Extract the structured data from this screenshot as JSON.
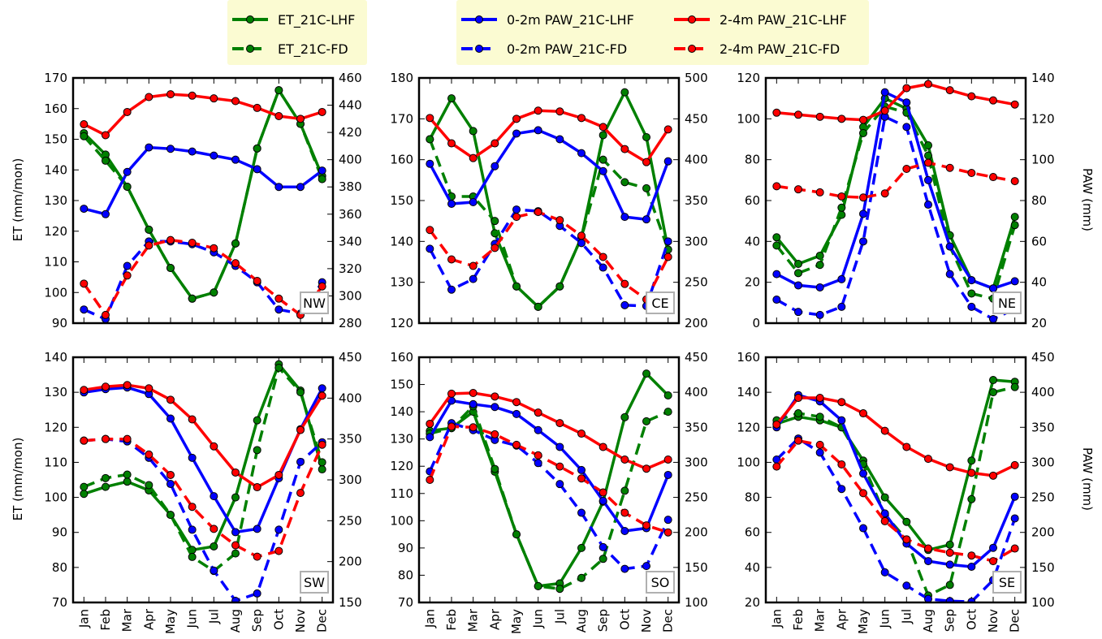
{
  "months": [
    "Jan",
    "Feb",
    "Mar",
    "Apr",
    "May",
    "Jun",
    "Jul",
    "Aug",
    "Sep",
    "Oct",
    "Nov",
    "Dec"
  ],
  "y_left_label": "ET (mm/mon)",
  "y_right_label": "PAW (mm)",
  "colors": {
    "et": "#008000",
    "paw02": "#0000ff",
    "paw24": "#ff0000"
  },
  "legends": [
    {
      "entries": [
        {
          "label": "ET_21C-LHF",
          "series": "et",
          "style": "solid"
        },
        {
          "label": "ET_21C-FD",
          "series": "et",
          "style": "dashed"
        }
      ]
    },
    {
      "entries": [
        {
          "label": "0-2m PAW_21C-LHF",
          "series": "paw02",
          "style": "solid"
        },
        {
          "label": "0-2m PAW_21C-FD",
          "series": "paw02",
          "style": "dashed"
        },
        {
          "label": "2-4m PAW_21C-LHF",
          "series": "paw24",
          "style": "solid"
        },
        {
          "label": "2-4m PAW_21C-FD",
          "series": "paw24",
          "style": "dashed"
        }
      ]
    }
  ],
  "chart_data": [
    {
      "type": "line",
      "region": "NW",
      "x": [
        "Jan",
        "Feb",
        "Mar",
        "Apr",
        "May",
        "Jun",
        "Jul",
        "Aug",
        "Sep",
        "Oct",
        "Nov",
        "Dec"
      ],
      "ylim_left": [
        90,
        170
      ],
      "yticks_left": [
        90,
        100,
        110,
        120,
        130,
        140,
        150,
        160,
        170
      ],
      "ylim_right": [
        280,
        460
      ],
      "yticks_right": [
        280,
        300,
        320,
        340,
        360,
        380,
        400,
        420,
        440,
        460
      ],
      "series": [
        {
          "name": "ET_21C-LHF",
          "axis": "left",
          "color": "et",
          "style": "solid",
          "values": [
            152,
            145,
            134.5,
            120.5,
            108,
            98,
            100,
            116,
            147,
            166,
            155,
            138
          ]
        },
        {
          "name": "ET_21C-FD",
          "axis": "left",
          "color": "et",
          "style": "dashed",
          "values": [
            151,
            143,
            134.5,
            120.5,
            108,
            98,
            100,
            116,
            147,
            166,
            155,
            137
          ]
        },
        {
          "name": "0-2m PAW_21C-LHF",
          "axis": "right",
          "color": "paw02",
          "style": "solid",
          "values": [
            364,
            360,
            391,
            409,
            408,
            406,
            403,
            400,
            393,
            380,
            380,
            392
          ]
        },
        {
          "name": "0-2m PAW_21C-FD",
          "axis": "right",
          "color": "paw02",
          "style": "dashed",
          "values": [
            290,
            283,
            322,
            340,
            340,
            338,
            332,
            322,
            310,
            290,
            287,
            310
          ]
        },
        {
          "name": "2-4m PAW_21C-LHF",
          "axis": "right",
          "color": "paw24",
          "style": "solid",
          "values": [
            426,
            418,
            435,
            446,
            448,
            447,
            445,
            443,
            438,
            432,
            430,
            435
          ]
        },
        {
          "name": "2-4m PAW_21C-FD",
          "axis": "right",
          "color": "paw24",
          "style": "dashed",
          "values": [
            309,
            286,
            315,
            337,
            341,
            339,
            335,
            324,
            311,
            298,
            286,
            307
          ]
        }
      ]
    },
    {
      "type": "line",
      "region": "CE",
      "x": [
        "Jan",
        "Feb",
        "Mar",
        "Apr",
        "May",
        "Jun",
        "Jul",
        "Aug",
        "Sep",
        "Oct",
        "Nov",
        "Dec"
      ],
      "ylim_left": [
        120,
        180
      ],
      "yticks_left": [
        120,
        130,
        140,
        150,
        160,
        170,
        180
      ],
      "ylim_right": [
        200,
        500
      ],
      "yticks_right": [
        200,
        250,
        300,
        350,
        400,
        450,
        500
      ],
      "series": [
        {
          "name": "ET_21C-LHF",
          "axis": "left",
          "color": "et",
          "style": "solid",
          "values": [
            165,
            175,
            167,
            142,
            129,
            124,
            129,
            141,
            166,
            176.5,
            165.5,
            138
          ]
        },
        {
          "name": "ET_21C-FD",
          "axis": "left",
          "color": "et",
          "style": "dashed",
          "values": [
            165,
            151,
            151,
            145,
            129,
            124,
            129,
            141,
            160,
            154.5,
            153,
            138
          ]
        },
        {
          "name": "0-2m PAW_21C-LHF",
          "axis": "right",
          "color": "paw02",
          "style": "solid",
          "values": [
            395,
            346,
            348,
            392,
            432,
            436,
            425,
            408,
            386,
            330,
            327,
            398
          ]
        },
        {
          "name": "0-2m PAW_21C-FD",
          "axis": "right",
          "color": "paw02",
          "style": "dashed",
          "values": [
            291,
            241,
            254,
            297,
            339,
            337,
            319,
            298,
            268,
            222,
            221,
            300
          ]
        },
        {
          "name": "2-4m PAW_21C-LHF",
          "axis": "right",
          "color": "paw24",
          "style": "solid",
          "values": [
            451,
            420,
            402,
            420,
            450,
            460,
            459,
            451,
            440,
            413,
            397,
            437
          ]
        },
        {
          "name": "2-4m PAW_21C-FD",
          "axis": "right",
          "color": "paw24",
          "style": "dashed",
          "values": [
            314,
            278,
            270,
            292,
            330,
            336,
            326,
            307,
            281,
            248,
            229,
            281
          ]
        }
      ]
    },
    {
      "type": "line",
      "region": "NE",
      "x": [
        "Jan",
        "Feb",
        "Mar",
        "Apr",
        "May",
        "Jun",
        "Jul",
        "Aug",
        "Sep",
        "Oct",
        "Nov",
        "Dec"
      ],
      "ylim_left": [
        0,
        120
      ],
      "yticks_left": [
        0,
        20,
        40,
        60,
        80,
        100,
        120
      ],
      "ylim_right": [
        20,
        140
      ],
      "yticks_right": [
        20,
        40,
        60,
        80,
        100,
        120,
        140
      ],
      "series": [
        {
          "name": "ET_21C-LHF",
          "axis": "left",
          "color": "et",
          "style": "solid",
          "values": [
            42,
            29,
            33,
            53,
            96,
            110,
            105,
            87,
            43,
            21,
            17,
            52
          ]
        },
        {
          "name": "ET_21C-FD",
          "axis": "left",
          "color": "et",
          "style": "dashed",
          "values": [
            38,
            24.5,
            28.5,
            56.5,
            93,
            106,
            103,
            82,
            37.5,
            14.5,
            12,
            48
          ]
        },
        {
          "name": "0-2m PAW_21C-LHF",
          "axis": "right",
          "color": "paw02",
          "style": "solid",
          "values": [
            44,
            38.5,
            37.5,
            41.5,
            73.5,
            133,
            128,
            90,
            57.5,
            41,
            37,
            40.5
          ]
        },
        {
          "name": "0-2m PAW_21C-FD",
          "axis": "right",
          "color": "paw02",
          "style": "dashed",
          "values": [
            31.5,
            25.5,
            24,
            28,
            60,
            121,
            116,
            78,
            44,
            28,
            22,
            27
          ]
        },
        {
          "name": "2-4m PAW_21C-LHF",
          "axis": "right",
          "color": "paw24",
          "style": "solid",
          "values": [
            123,
            122,
            121,
            120,
            119.5,
            124,
            135,
            137,
            134,
            131,
            129,
            127
          ]
        },
        {
          "name": "2-4m PAW_21C-FD",
          "axis": "right",
          "color": "paw24",
          "style": "dashed",
          "values": [
            87,
            85.5,
            84,
            82,
            81.5,
            83.5,
            95.5,
            98.5,
            96,
            93.5,
            91.5,
            89.5
          ]
        }
      ]
    },
    {
      "type": "line",
      "region": "SW",
      "x": [
        "Jan",
        "Feb",
        "Mar",
        "Apr",
        "May",
        "Jun",
        "Jul",
        "Aug",
        "Sep",
        "Oct",
        "Nov",
        "Dec"
      ],
      "ylim_left": [
        70,
        140
      ],
      "yticks_left": [
        70,
        80,
        90,
        100,
        110,
        120,
        130,
        140
      ],
      "ylim_right": [
        150,
        450
      ],
      "yticks_right": [
        150,
        200,
        250,
        300,
        350,
        400,
        450
      ],
      "series": [
        {
          "name": "ET_21C-LHF",
          "axis": "left",
          "color": "et",
          "style": "solid",
          "values": [
            101,
            103,
            104.5,
            102,
            95,
            85,
            86,
            100,
            122,
            138,
            130.5,
            108
          ]
        },
        {
          "name": "ET_21C-FD",
          "axis": "left",
          "color": "et",
          "style": "dashed",
          "values": [
            103,
            105.5,
            106.5,
            103.5,
            95,
            83,
            79,
            84,
            113.5,
            137,
            130,
            110
          ]
        },
        {
          "name": "0-2m PAW_21C-LHF",
          "axis": "right",
          "color": "paw02",
          "style": "solid",
          "values": [
            407,
            411,
            413,
            405,
            375,
            327,
            280,
            236,
            240,
            302,
            362,
            412
          ]
        },
        {
          "name": "0-2m PAW_21C-FD",
          "axis": "right",
          "color": "paw02",
          "style": "dashed",
          "values": [
            348,
            350,
            347,
            327,
            295,
            239,
            189,
            152,
            161,
            239,
            322,
            346
          ]
        },
        {
          "name": "2-4m PAW_21C-LHF",
          "axis": "right",
          "color": "paw24",
          "style": "solid",
          "values": [
            410,
            414,
            416,
            412,
            398,
            374,
            341,
            309,
            291,
            306,
            361,
            403
          ]
        },
        {
          "name": "2-4m PAW_21C-FD",
          "axis": "right",
          "color": "paw24",
          "style": "dashed",
          "values": [
            348,
            350,
            350,
            331,
            306,
            267,
            240,
            220,
            206,
            213,
            284,
            343
          ]
        }
      ]
    },
    {
      "type": "line",
      "region": "SO",
      "x": [
        "Jan",
        "Feb",
        "Mar",
        "Apr",
        "May",
        "Jun",
        "Jul",
        "Aug",
        "Sep",
        "Oct",
        "Nov",
        "Dec"
      ],
      "ylim_left": [
        70,
        160
      ],
      "yticks_left": [
        70,
        80,
        90,
        100,
        110,
        120,
        130,
        140,
        150,
        160
      ],
      "ylim_right": [
        100,
        450
      ],
      "yticks_right": [
        100,
        150,
        200,
        250,
        300,
        350,
        400,
        450
      ],
      "series": [
        {
          "name": "ET_21C-LHF",
          "axis": "left",
          "color": "et",
          "style": "solid",
          "values": [
            133,
            134,
            140,
            118,
            95,
            76,
            77,
            90,
            107,
            138,
            154,
            146
          ]
        },
        {
          "name": "ET_21C-FD",
          "axis": "left",
          "color": "et",
          "style": "dashed",
          "values": [
            132,
            134,
            142,
            119,
            95,
            76,
            75,
            79,
            86,
            111,
            136.5,
            140
          ]
        },
        {
          "name": "0-2m PAW_21C-LHF",
          "axis": "right",
          "color": "paw02",
          "style": "solid",
          "values": [
            336,
            388,
            383,
            379,
            369,
            346,
            322,
            289,
            245,
            202,
            206,
            282
          ]
        },
        {
          "name": "0-2m PAW_21C-FD",
          "axis": "right",
          "color": "paw02",
          "style": "dashed",
          "values": [
            287,
            356,
            346,
            332,
            324,
            299,
            269,
            228,
            179,
            148,
            152,
            218
          ]
        },
        {
          "name": "2-4m PAW_21C-LHF",
          "axis": "right",
          "color": "paw24",
          "style": "solid",
          "values": [
            355,
            398,
            399,
            394,
            386,
            371,
            356,
            341,
            322,
            304,
            291,
            304
          ]
        },
        {
          "name": "2-4m PAW_21C-FD",
          "axis": "right",
          "color": "paw24",
          "style": "dashed",
          "values": [
            275,
            351,
            350,
            340,
            325,
            310,
            294,
            277,
            257,
            228,
            210,
            200
          ]
        }
      ]
    },
    {
      "type": "line",
      "region": "SE",
      "x": [
        "Jan",
        "Feb",
        "Mar",
        "Apr",
        "May",
        "Jun",
        "Jul",
        "Aug",
        "Sep",
        "Oct",
        "Nov",
        "Dec"
      ],
      "ylim_left": [
        20,
        160
      ],
      "yticks_left": [
        20,
        40,
        60,
        80,
        100,
        120,
        140,
        160
      ],
      "ylim_right": [
        100,
        450
      ],
      "yticks_right": [
        100,
        150,
        200,
        250,
        300,
        350,
        400,
        450
      ],
      "series": [
        {
          "name": "ET_21C-LHF",
          "axis": "left",
          "color": "et",
          "style": "solid",
          "values": [
            122,
            126,
            124,
            120,
            101,
            80,
            66,
            50,
            53,
            101,
            147,
            146
          ]
        },
        {
          "name": "ET_21C-FD",
          "axis": "left",
          "color": "et",
          "style": "dashed",
          "values": [
            124,
            128,
            126,
            120,
            99,
            70,
            56,
            24,
            30,
            79,
            140,
            143
          ]
        },
        {
          "name": "0-2m PAW_21C-LHF",
          "axis": "right",
          "color": "paw02",
          "style": "solid",
          "values": [
            350,
            396,
            387,
            360,
            284,
            227,
            184,
            159,
            154,
            151,
            178,
            251
          ]
        },
        {
          "name": "0-2m PAW_21C-FD",
          "axis": "right",
          "color": "paw02",
          "style": "dashed",
          "values": [
            304,
            334,
            314,
            262,
            206,
            143,
            124,
            105,
            102,
            101,
            132,
            220
          ]
        },
        {
          "name": "2-4m PAW_21C-LHF",
          "axis": "right",
          "color": "paw24",
          "style": "solid",
          "values": [
            354,
            392,
            392,
            386,
            370,
            345,
            322,
            305,
            293,
            285,
            281,
            296
          ]
        },
        {
          "name": "2-4m PAW_21C-FD",
          "axis": "right",
          "color": "paw24",
          "style": "dashed",
          "values": [
            294,
            331,
            325,
            297,
            256,
            216,
            190,
            177,
            171,
            167,
            159,
            177
          ]
        }
      ]
    }
  ]
}
